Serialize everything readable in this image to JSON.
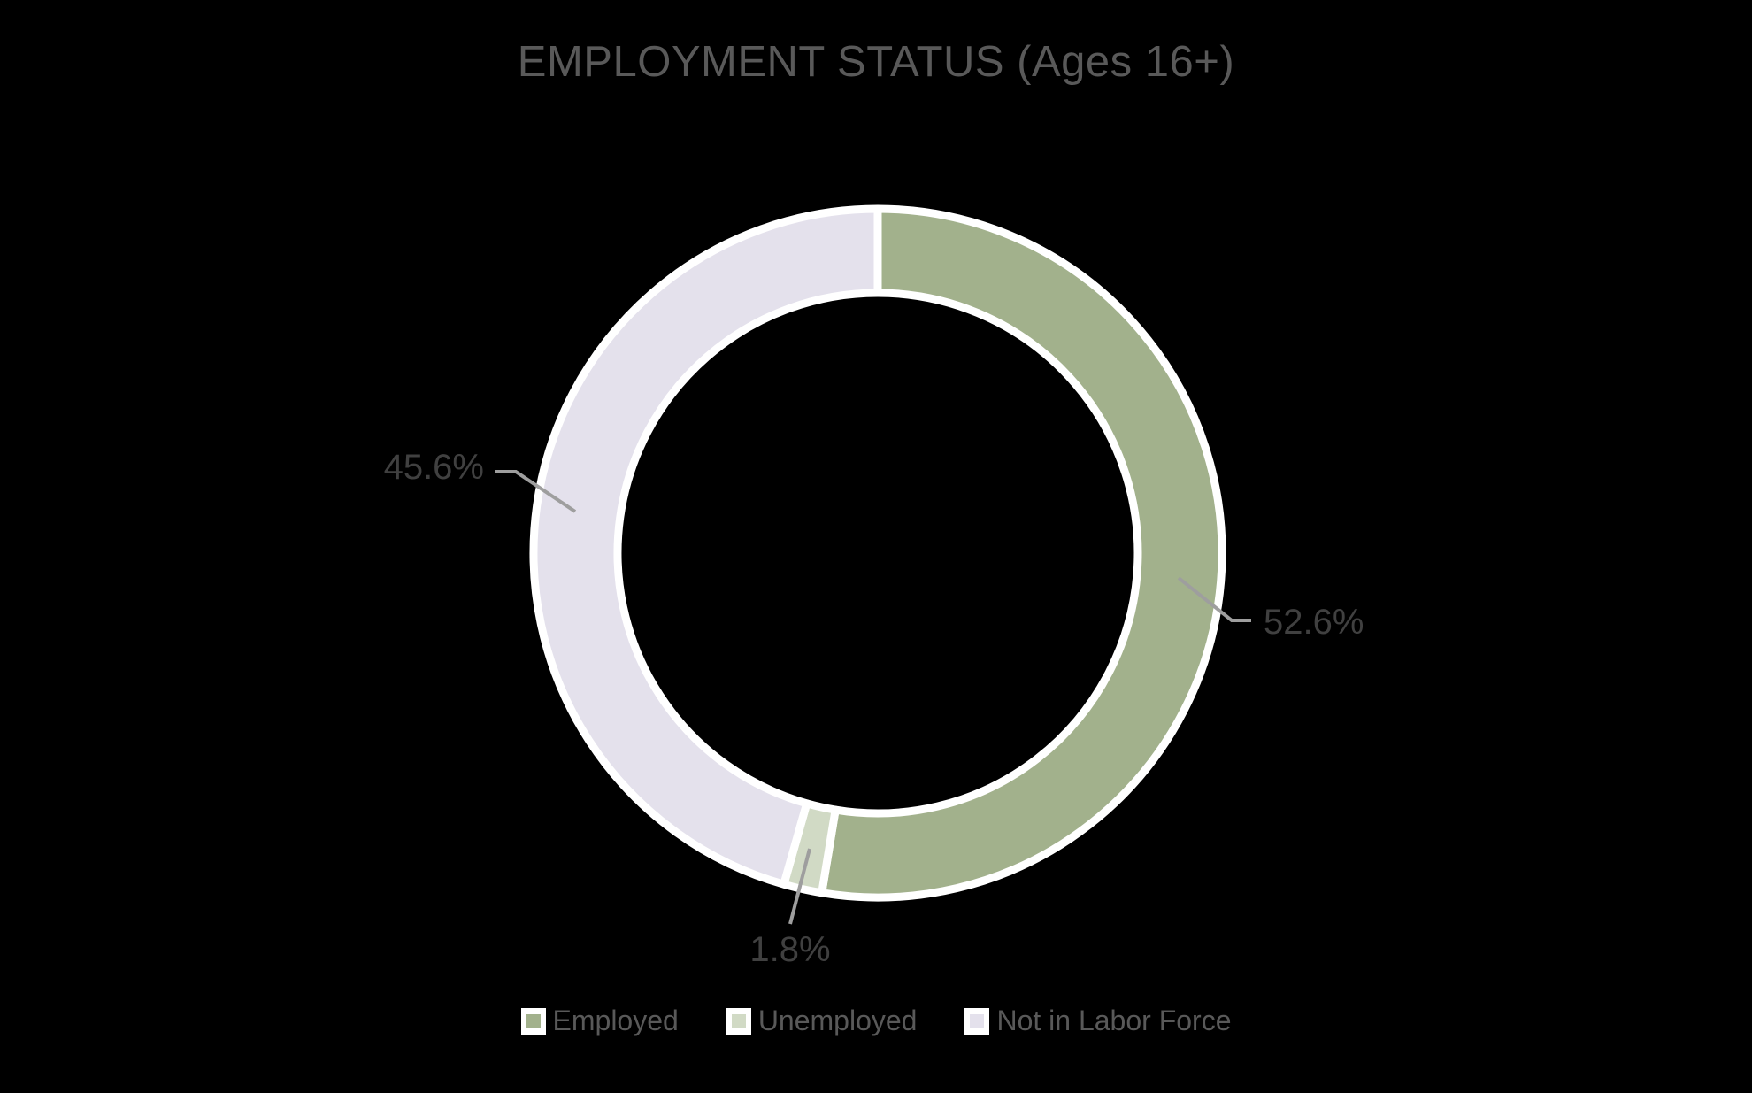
{
  "title": "EMPLOYMENT STATUS (Ages 16+)",
  "chart_data": {
    "type": "pie",
    "subtype": "donut",
    "title": "EMPLOYMENT STATUS (Ages 16+)",
    "categories": [
      "Employed",
      "Unemployed",
      "Not in Labor Force"
    ],
    "values": [
      52.6,
      1.8,
      45.6
    ],
    "unit": "%",
    "data_labels": [
      "52.6%",
      "1.8%",
      "45.6%"
    ],
    "colors": [
      "#A2B18C",
      "#D1DAC5",
      "#E4E1EC"
    ],
    "slice_border_color": "#FFFFFF",
    "leader_line_color": "#9E9E9E",
    "data_label_color": "#404040",
    "title_color": "#595959",
    "legend_text_color": "#595959",
    "background_color": "#000000",
    "start_angle_deg": 0,
    "direction": "clockwise",
    "donut_hole_ratio": 0.76,
    "legend_position": "bottom"
  }
}
